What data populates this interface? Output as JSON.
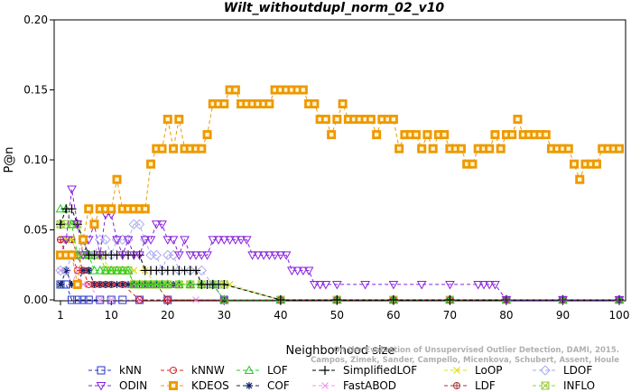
{
  "chart_data": {
    "type": "line",
    "title": "Wilt_withoutdupl_norm_02_v10",
    "xlabel": "Neighborhood size",
    "ylabel": "P@n",
    "xlim": [
      1,
      100
    ],
    "ylim": [
      0,
      0.2
    ],
    "xticks": [
      1,
      10,
      20,
      30,
      40,
      50,
      60,
      70,
      80,
      90,
      100
    ],
    "yticks": [
      0.0,
      0.05,
      0.1,
      0.15,
      0.2
    ],
    "ytick_labels": [
      "0.00",
      "0.05",
      "0.10",
      "0.15",
      "0.20"
    ],
    "grid": false,
    "legend_position": "bottom",
    "credit_lines": [
      "Campos, Zimek, Sander, Campello, Micenkova, Schubert, Assent, Houle",
      "On the Evaluation of Unsupervised Outlier Detection, DAMI, 2015."
    ],
    "series": [
      {
        "name": "kNN",
        "color": "#2233cc",
        "marker": "square",
        "x": [
          1,
          2,
          3,
          4,
          5,
          6,
          8,
          10,
          12,
          15,
          20,
          30,
          40,
          50,
          60,
          70,
          80,
          90,
          100
        ],
        "y": [
          0.011,
          0.011,
          0,
          0,
          0,
          0,
          0,
          0,
          0,
          0,
          0,
          0,
          0,
          0,
          0,
          0,
          0,
          0,
          0
        ]
      },
      {
        "name": "kNNW",
        "color": "#dd2222",
        "marker": "circle",
        "x": [
          1,
          2,
          3,
          4,
          5,
          6,
          7,
          8,
          10,
          12,
          15,
          20,
          30,
          40,
          50,
          60,
          70,
          80,
          90,
          100
        ],
        "y": [
          0.043,
          0.032,
          0.032,
          0.021,
          0.021,
          0.011,
          0.011,
          0.011,
          0.011,
          0.011,
          0,
          0,
          0,
          0,
          0,
          0,
          0,
          0,
          0,
          0
        ]
      },
      {
        "name": "LOF",
        "color": "#22cc22",
        "marker": "triangle",
        "x": [
          1,
          2,
          3,
          4,
          5,
          6,
          7,
          8,
          9,
          10,
          11,
          12,
          13,
          14,
          15,
          16,
          17,
          18,
          19,
          20,
          22,
          24,
          26,
          28,
          30,
          40,
          50,
          60,
          70,
          80,
          90,
          100
        ],
        "y": [
          0.065,
          0.065,
          0.054,
          0.032,
          0.032,
          0.032,
          0.021,
          0.021,
          0.021,
          0.021,
          0.021,
          0.021,
          0.021,
          0.011,
          0.011,
          0.011,
          0.011,
          0.011,
          0.011,
          0.011,
          0.011,
          0.011,
          0.011,
          0.011,
          0,
          0,
          0,
          0,
          0,
          0,
          0,
          0
        ]
      },
      {
        "name": "SimplifiedLOF",
        "color": "#000000",
        "marker": "plus",
        "x": [
          1,
          2,
          3,
          4,
          5,
          6,
          7,
          8,
          9,
          10,
          11,
          12,
          13,
          14,
          15,
          16,
          17,
          18,
          19,
          20,
          21,
          22,
          23,
          24,
          25,
          26,
          27,
          28,
          29,
          30,
          40,
          50,
          60,
          70,
          80,
          90,
          100
        ],
        "y": [
          0.054,
          0.065,
          0.065,
          0.054,
          0.043,
          0.032,
          0.032,
          0.032,
          0.032,
          0.032,
          0.032,
          0.032,
          0.032,
          0.032,
          0.032,
          0.021,
          0.021,
          0.021,
          0.021,
          0.021,
          0.021,
          0.021,
          0.021,
          0.021,
          0.021,
          0.011,
          0.011,
          0.011,
          0.011,
          0.011,
          0,
          0,
          0,
          0,
          0,
          0,
          0
        ]
      },
      {
        "name": "LoOP",
        "color": "#dddd22",
        "marker": "x",
        "x": [
          1,
          2,
          3,
          4,
          5,
          6,
          8,
          10,
          12,
          14,
          16,
          18,
          20,
          22,
          24,
          26,
          28,
          30,
          31,
          40,
          50,
          60,
          70,
          80,
          90,
          100
        ],
        "y": [
          0.032,
          0.043,
          0.043,
          0.032,
          0.032,
          0.032,
          0.032,
          0.021,
          0.021,
          0.021,
          0.021,
          0.011,
          0.011,
          0.011,
          0.011,
          0.011,
          0.011,
          0.011,
          0.011,
          0,
          0,
          0,
          0,
          0,
          0,
          0
        ]
      },
      {
        "name": "LDOF",
        "color": "#aaaaee",
        "marker": "diamond",
        "x": [
          1,
          2,
          3,
          4,
          5,
          6,
          7,
          8,
          9,
          10,
          11,
          12,
          13,
          14,
          15,
          16,
          17,
          18,
          19,
          20,
          21,
          22,
          24,
          26,
          28,
          30,
          40,
          50,
          60,
          70,
          80,
          90,
          100
        ],
        "y": [
          0.021,
          0.021,
          0.032,
          0.032,
          0.043,
          0.032,
          0.032,
          0.043,
          0.043,
          0.032,
          0.043,
          0.043,
          0.043,
          0.054,
          0.054,
          0.043,
          0.032,
          0.032,
          0.021,
          0.032,
          0.032,
          0.021,
          0.021,
          0.021,
          0.011,
          0,
          0,
          0,
          0,
          0,
          0,
          0,
          0
        ]
      },
      {
        "name": "ODIN",
        "color": "#8822dd",
        "marker": "triangle-down",
        "x": [
          1,
          2,
          3,
          4,
          5,
          6,
          7,
          8,
          9,
          10,
          11,
          12,
          13,
          14,
          15,
          16,
          17,
          18,
          19,
          20,
          21,
          22,
          23,
          24,
          25,
          26,
          27,
          28,
          29,
          30,
          31,
          32,
          33,
          34,
          35,
          36,
          37,
          38,
          39,
          40,
          41,
          42,
          43,
          44,
          45,
          46,
          47,
          48,
          50,
          55,
          60,
          65,
          70,
          75,
          76,
          77,
          78,
          80,
          90,
          100
        ],
        "y": [
          0.032,
          0.043,
          0.079,
          0.054,
          0.032,
          0.043,
          0.054,
          0.032,
          0.061,
          0.061,
          0.043,
          0.032,
          0.043,
          0.032,
          0.032,
          0.043,
          0.043,
          0.054,
          0.054,
          0.043,
          0.043,
          0.032,
          0.043,
          0.032,
          0.032,
          0.032,
          0.032,
          0.043,
          0.043,
          0.043,
          0.043,
          0.043,
          0.043,
          0.043,
          0.032,
          0.032,
          0.032,
          0.032,
          0.032,
          0.032,
          0.032,
          0.021,
          0.021,
          0.021,
          0.021,
          0.011,
          0.011,
          0.011,
          0.011,
          0.011,
          0.011,
          0.011,
          0.011,
          0.011,
          0.011,
          0.011,
          0.011,
          0,
          0,
          0
        ]
      },
      {
        "name": "KDEOS",
        "color": "#ee9900",
        "marker": "square-filled",
        "x": [
          1,
          2,
          3,
          4,
          5,
          6,
          7,
          8,
          9,
          10,
          11,
          12,
          13,
          14,
          15,
          16,
          17,
          18,
          19,
          20,
          21,
          22,
          23,
          24,
          25,
          26,
          27,
          28,
          29,
          30,
          31,
          32,
          33,
          34,
          35,
          36,
          37,
          38,
          39,
          40,
          41,
          42,
          43,
          44,
          45,
          46,
          47,
          48,
          49,
          50,
          51,
          52,
          53,
          54,
          55,
          56,
          57,
          58,
          59,
          60,
          61,
          62,
          63,
          64,
          65,
          66,
          67,
          68,
          69,
          70,
          71,
          72,
          73,
          74,
          75,
          76,
          77,
          78,
          79,
          80,
          81,
          82,
          83,
          84,
          85,
          86,
          87,
          88,
          89,
          90,
          91,
          92,
          93,
          94,
          95,
          96,
          97,
          98,
          99,
          100
        ],
        "y": [
          0.032,
          0.032,
          0.032,
          0.011,
          0.043,
          0.065,
          0.054,
          0.065,
          0.065,
          0.065,
          0.086,
          0.065,
          0.065,
          0.065,
          0.065,
          0.065,
          0.097,
          0.108,
          0.108,
          0.129,
          0.108,
          0.129,
          0.108,
          0.108,
          0.108,
          0.108,
          0.118,
          0.14,
          0.14,
          0.14,
          0.15,
          0.15,
          0.14,
          0.14,
          0.14,
          0.14,
          0.14,
          0.14,
          0.15,
          0.15,
          0.15,
          0.15,
          0.15,
          0.15,
          0.14,
          0.14,
          0.129,
          0.129,
          0.118,
          0.129,
          0.14,
          0.129,
          0.129,
          0.129,
          0.129,
          0.129,
          0.118,
          0.129,
          0.129,
          0.129,
          0.108,
          0.118,
          0.118,
          0.118,
          0.108,
          0.118,
          0.108,
          0.118,
          0.118,
          0.108,
          0.108,
          0.108,
          0.097,
          0.097,
          0.108,
          0.108,
          0.108,
          0.118,
          0.108,
          0.118,
          0.118,
          0.129,
          0.118,
          0.118,
          0.118,
          0.118,
          0.118,
          0.108,
          0.108,
          0.108,
          0.108,
          0.097,
          0.086,
          0.097,
          0.097,
          0.097,
          0.108,
          0.108,
          0.108,
          0.108
        ]
      },
      {
        "name": "COF",
        "color": "#112266",
        "marker": "asterisk",
        "x": [
          1,
          2,
          3,
          4,
          5,
          6,
          7,
          8,
          9,
          10,
          11,
          12,
          13,
          14,
          15,
          16,
          17,
          18,
          19,
          20,
          21,
          22,
          24,
          26,
          28,
          30,
          40,
          50,
          60,
          70,
          80,
          90,
          100
        ],
        "y": [
          0.011,
          0.021,
          0.011,
          0.011,
          0.021,
          0.021,
          0.011,
          0.011,
          0.011,
          0.011,
          0.011,
          0.011,
          0.011,
          0.011,
          0.011,
          0.011,
          0.011,
          0.011,
          0.011,
          0.011,
          0.011,
          0.011,
          0.011,
          0.011,
          0.011,
          0,
          0,
          0,
          0,
          0,
          0,
          0,
          0
        ]
      },
      {
        "name": "FastABOD",
        "color": "#ee99ee",
        "marker": "cross",
        "x": [
          1,
          2,
          3,
          4,
          5,
          6,
          8,
          10,
          15,
          20,
          25,
          30,
          40,
          50,
          60,
          70,
          80,
          90,
          100
        ],
        "y": [
          0.021,
          0.021,
          0.011,
          0.021,
          0.011,
          0.011,
          0,
          0,
          0,
          0,
          0,
          0,
          0,
          0,
          0,
          0,
          0,
          0,
          0
        ]
      },
      {
        "name": "LDF",
        "color": "#aa3333",
        "marker": "circle-plus",
        "x": [
          1,
          2,
          3,
          4,
          5,
          6,
          7,
          8,
          9,
          10,
          12,
          14,
          16,
          18,
          20,
          30,
          40,
          50,
          60,
          70,
          80,
          90,
          100
        ],
        "y": [
          0.043,
          0.043,
          0.043,
          0.032,
          0.021,
          0.021,
          0.011,
          0.011,
          0.011,
          0.011,
          0.011,
          0.011,
          0.011,
          0.011,
          0,
          0,
          0,
          0,
          0,
          0,
          0,
          0,
          0
        ]
      },
      {
        "name": "INFLO",
        "color": "#99cc33",
        "marker": "square-x",
        "x": [
          1,
          2,
          3,
          4,
          5,
          6,
          7,
          8,
          9,
          10,
          11,
          12,
          13,
          14,
          15,
          16,
          17,
          18,
          19,
          20,
          22,
          24,
          26,
          28,
          30,
          40,
          50,
          60,
          70,
          80,
          90,
          100
        ],
        "y": [
          0.054,
          0.054,
          0.054,
          0.054,
          0.043,
          0.032,
          0.032,
          0.032,
          0.021,
          0.021,
          0.021,
          0.021,
          0.021,
          0.011,
          0.011,
          0.011,
          0.011,
          0.011,
          0.011,
          0.011,
          0.011,
          0.011,
          0.011,
          0.011,
          0.011,
          0,
          0,
          0,
          0,
          0,
          0,
          0
        ]
      }
    ],
    "legend_rows": [
      [
        "kNN",
        "kNNW",
        "LOF",
        "SimplifiedLOF",
        "LoOP",
        "LDOF"
      ],
      [
        "ODIN",
        "KDEOS",
        "COF",
        "FastABOD",
        "LDF",
        "INFLO"
      ]
    ]
  }
}
